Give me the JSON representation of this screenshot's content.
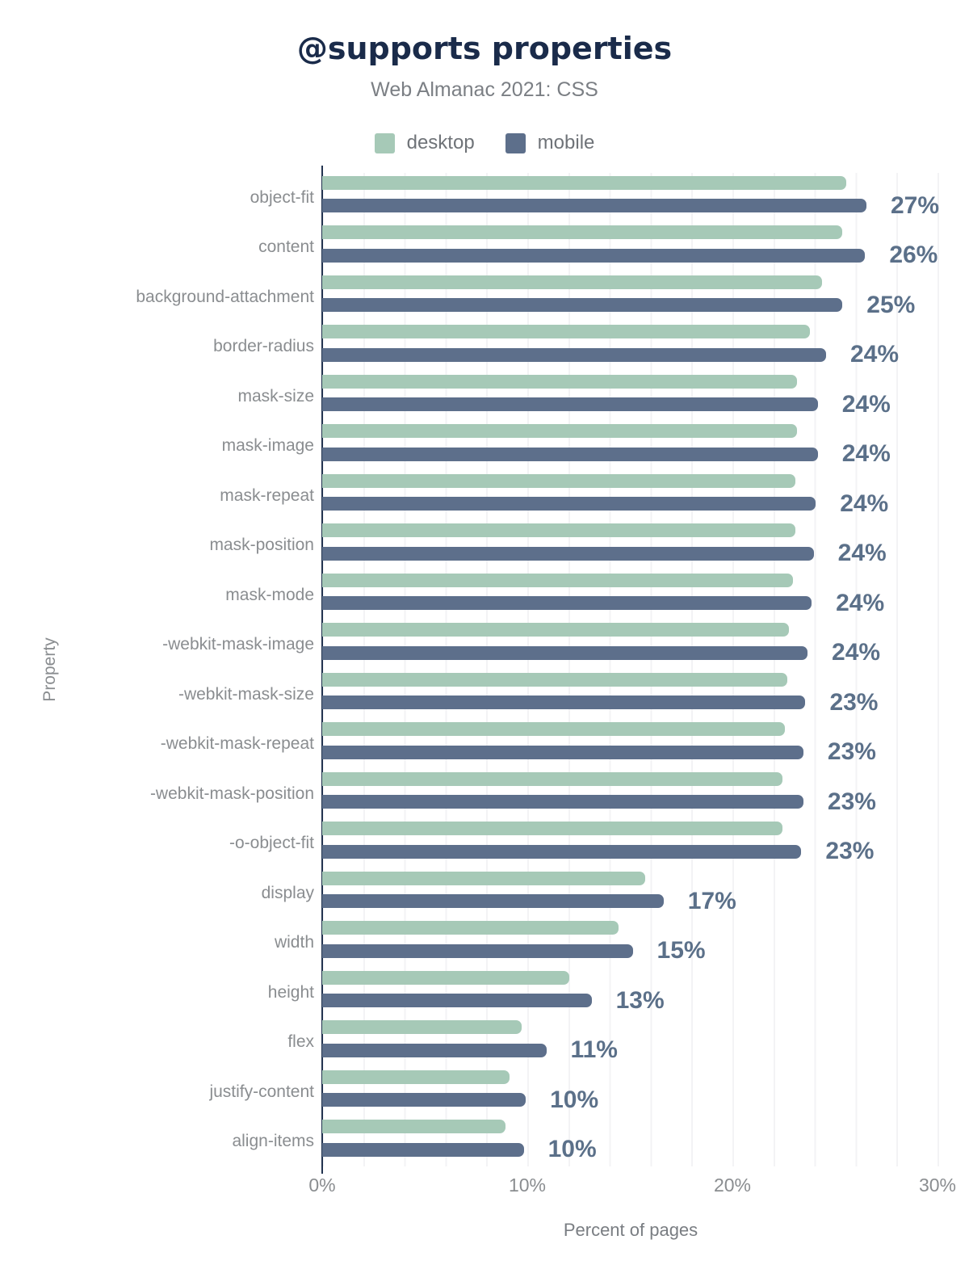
{
  "title": "@supports properties",
  "subtitle": "Web Almanac 2021: CSS",
  "legend": {
    "items": [
      {
        "label": "desktop",
        "color": "#a6c9b7"
      },
      {
        "label": "mobile",
        "color": "#5d6f8b"
      }
    ]
  },
  "axes": {
    "x_label": "Percent of pages",
    "y_label": "Property",
    "x_ticks": [
      "0%",
      "10%",
      "20%",
      "30%"
    ]
  },
  "colors": {
    "title": "#1a2b4a",
    "subtitle": "#7b7f84",
    "desktop_bar": "#a6c9b7",
    "mobile_bar": "#5d6f8b",
    "value_label": "#5b7089",
    "axis_line": "#22334f",
    "gridline": "#f3f3f5",
    "category_label": "#8a8d90"
  },
  "chart_data": {
    "type": "bar",
    "orientation": "horizontal",
    "title": "@supports properties",
    "subtitle": "Web Almanac 2021: CSS",
    "xlabel": "Percent of pages",
    "ylabel": "Property",
    "xlim": [
      0,
      30
    ],
    "grid": true,
    "legend_position": "top",
    "categories": [
      "object-fit",
      "content",
      "background-attachment",
      "border-radius",
      "mask-size",
      "mask-image",
      "mask-repeat",
      "mask-position",
      "mask-mode",
      "-webkit-mask-image",
      "-webkit-mask-size",
      "-webkit-mask-repeat",
      "-webkit-mask-position",
      "-o-object-fit",
      "display",
      "width",
      "height",
      "flex",
      "justify-content",
      "align-items"
    ],
    "series": [
      {
        "name": "desktop",
        "values": [
          25.5,
          25.3,
          24.3,
          23.7,
          23.1,
          23.1,
          23.0,
          23.0,
          22.9,
          22.7,
          22.6,
          22.5,
          22.4,
          22.4,
          15.7,
          14.4,
          12.0,
          9.7,
          9.1,
          8.9
        ]
      },
      {
        "name": "mobile",
        "values": [
          26.8,
          26.4,
          25.3,
          24.5,
          24.1,
          24.1,
          24.0,
          23.9,
          23.8,
          23.6,
          23.5,
          23.4,
          23.4,
          23.3,
          16.6,
          15.1,
          13.1,
          10.9,
          9.9,
          9.8
        ]
      }
    ],
    "value_labels": [
      "27%",
      "26%",
      "25%",
      "24%",
      "24%",
      "24%",
      "24%",
      "24%",
      "24%",
      "24%",
      "23%",
      "23%",
      "23%",
      "23%",
      "17%",
      "15%",
      "13%",
      "11%",
      "10%",
      "10%"
    ]
  }
}
